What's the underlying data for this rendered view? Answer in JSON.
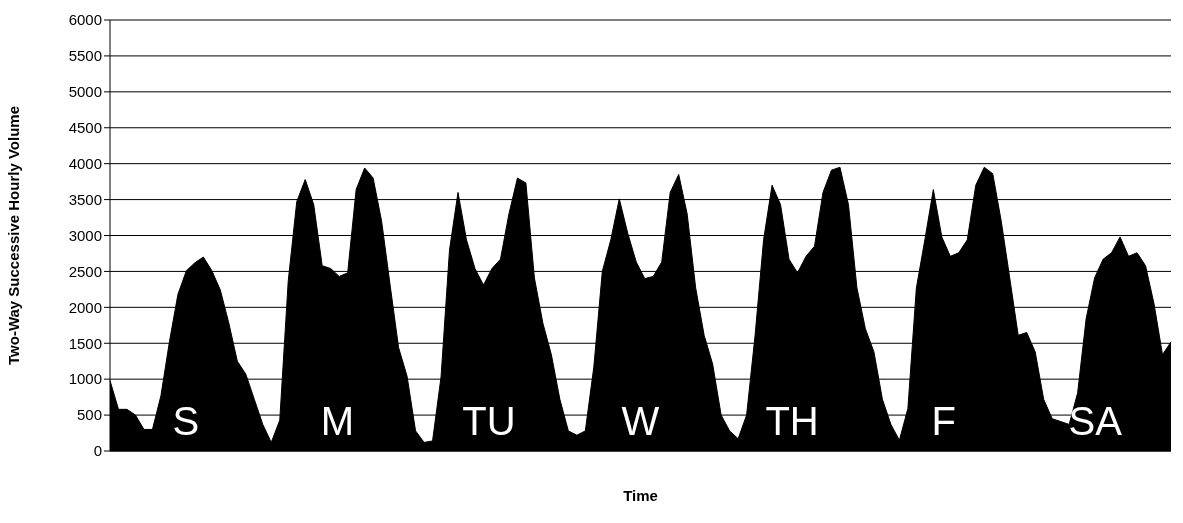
{
  "chart_data": {
    "type": "area",
    "xlabel": "Time",
    "ylabel": "Two-Way Successive Hourly Volume",
    "categories": [
      null,
      null,
      null,
      null,
      null,
      null,
      null,
      null,
      null,
      null,
      null,
      null,
      null,
      null,
      null,
      null,
      null,
      null,
      null,
      null,
      null,
      null,
      null,
      null,
      null,
      null,
      null,
      null,
      null,
      null,
      null,
      null,
      null,
      null,
      null,
      null,
      null,
      null,
      null,
      null,
      null,
      null,
      null,
      null,
      null,
      null,
      null,
      null,
      null,
      null,
      null,
      null,
      null,
      null,
      null,
      null,
      null,
      null,
      null,
      null,
      null,
      null,
      null,
      null,
      null,
      null,
      null,
      null,
      null,
      null,
      null,
      null,
      null,
      null,
      null,
      null,
      null,
      null,
      null,
      null,
      null,
      null,
      null,
      null,
      null,
      null,
      null,
      null,
      null,
      null,
      null,
      null,
      null,
      null,
      null,
      null,
      null,
      null,
      null,
      null,
      null,
      null,
      null,
      null,
      null,
      null,
      null,
      null,
      null,
      null,
      null,
      null,
      null,
      null,
      null,
      null,
      null,
      null,
      null,
      null,
      null,
      null,
      null,
      null,
      null,
      null
    ],
    "series": [
      {
        "color": "#000000",
        "values": [
          980,
          580,
          580,
          500,
          300,
          300,
          770,
          1520,
          2180,
          2510,
          2620,
          2700,
          2510,
          2240,
          1780,
          1250,
          1070,
          720,
          370,
          120,
          430,
          2370,
          3470,
          3780,
          3430,
          2580,
          2540,
          2430,
          2480,
          3640,
          3940,
          3800,
          3200,
          2310,
          1440,
          1040,
          280,
          120,
          140,
          1030,
          2800,
          3600,
          2940,
          2540,
          2310,
          2540,
          2670,
          3300,
          3800,
          3730,
          2410,
          1780,
          1340,
          720,
          280,
          220,
          280,
          1170,
          2500,
          2940,
          3510,
          3030,
          2630,
          2400,
          2430,
          2630,
          3600,
          3850,
          3300,
          2270,
          1610,
          1210,
          500,
          280,
          170,
          500,
          1610,
          2940,
          3700,
          3430,
          2670,
          2480,
          2710,
          2850,
          3600,
          3910,
          3950,
          3430,
          2270,
          1700,
          1380,
          720,
          370,
          150,
          590,
          2270,
          2940,
          3640,
          2980,
          2710,
          2760,
          2940,
          3700,
          3950,
          3860,
          3200,
          2410,
          1610,
          1650,
          1380,
          720,
          450,
          410,
          370,
          810,
          1840,
          2410,
          2670,
          2760,
          2980,
          2710,
          2760,
          2580,
          2050,
          1340,
          1520
        ]
      }
    ],
    "ylim": [
      0,
      6000
    ],
    "yticks": [
      0,
      500,
      1000,
      1500,
      2000,
      2500,
      3000,
      3500,
      4000,
      4500,
      5000,
      5500,
      6000
    ],
    "grid": "y",
    "tick_labels": "y",
    "annotations": [
      "S",
      "M",
      "TU",
      "W",
      "TH",
      "F",
      "SA"
    ]
  }
}
